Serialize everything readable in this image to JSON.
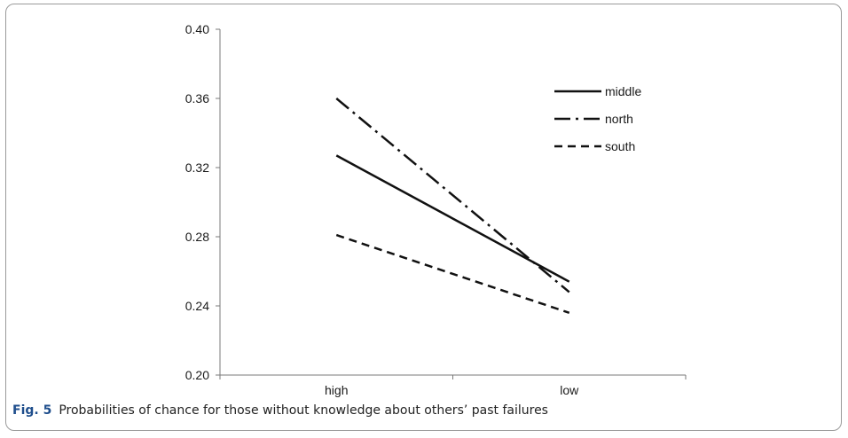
{
  "caption": {
    "label": "Fig. 5",
    "text": "Probabilities of chance for those without knowledge about others’ past failures"
  },
  "chart_data": {
    "type": "line",
    "categories": [
      "high",
      "low"
    ],
    "series": [
      {
        "name": "middle",
        "values": [
          0.327,
          0.254
        ],
        "dash": "solid"
      },
      {
        "name": "north",
        "values": [
          0.36,
          0.248
        ],
        "dash": "dashdot"
      },
      {
        "name": "south",
        "values": [
          0.281,
          0.236
        ],
        "dash": "dashed"
      }
    ],
    "yticks": [
      "0.20",
      "0.24",
      "0.28",
      "0.32",
      "0.36",
      "0.40"
    ],
    "ylim": [
      0.2,
      0.4
    ],
    "grid": false,
    "legend": "top-right",
    "line_color": "#111111"
  }
}
